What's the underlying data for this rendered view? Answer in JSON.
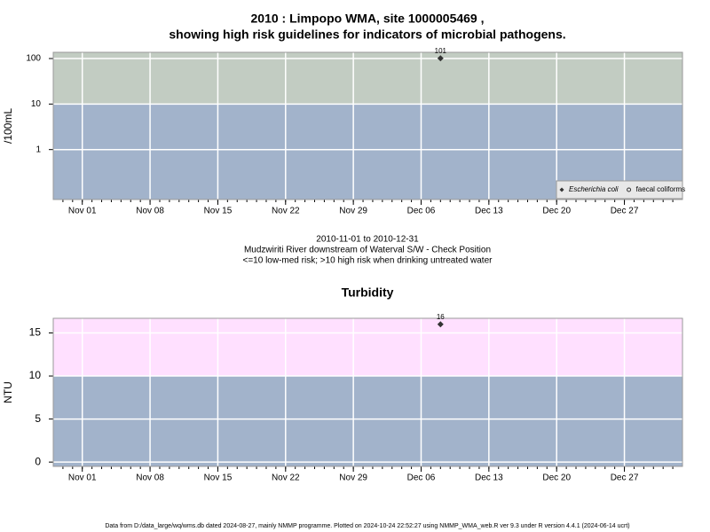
{
  "title_lines": [
    "2010 : Limpopo WMA, site 1000005469 ,",
    "showing high risk guidelines for indicators of microbial pathogens."
  ],
  "footer": "Data from D:/data_large/wq/wms.db dated 2024-08-27, mainly NMMP programme. Plotted on 2024-10-24 22:52:27 using NMMP_WMA_web.R ver 9.3 under R version 4.4.1 (2024-06-14 ucrt)",
  "chart_data": [
    {
      "type": "scatter",
      "ylabel": "/100mL",
      "log_scale": true,
      "grid": true,
      "legend": "bottom-right",
      "xlim": [
        "2010-10-29",
        "2011-01-02"
      ],
      "xticks": [
        {
          "value": "2010-11-01",
          "label": "Nov 01"
        },
        {
          "value": "2010-11-08",
          "label": "Nov 08"
        },
        {
          "value": "2010-11-15",
          "label": "Nov 15"
        },
        {
          "value": "2010-11-22",
          "label": "Nov 22"
        },
        {
          "value": "2010-11-29",
          "label": "Nov 29"
        },
        {
          "value": "2010-12-06",
          "label": "Dec 06"
        },
        {
          "value": "2010-12-13",
          "label": "Dec 13"
        },
        {
          "value": "2010-12-20",
          "label": "Dec 20"
        },
        {
          "value": "2010-12-27",
          "label": "Dec 27"
        }
      ],
      "ylim": [
        0.08,
        137
      ],
      "yticks": [
        1,
        10,
        100
      ],
      "guideline": 10,
      "band_colors": [
        "#a2b3cb",
        "#c2ccc2"
      ],
      "series": [
        {
          "name": "Escherichia coli",
          "marker": "diamond",
          "color": "#333333",
          "x": [
            "2010-12-08"
          ],
          "values": [
            101
          ]
        },
        {
          "name": "faecal coliforms",
          "marker": "circle-open",
          "color": "#333333",
          "x": [],
          "values": []
        }
      ],
      "notes": [
        "2010-11-01 to 2010-12-31",
        "Mudzwiriti River downstream of Waterval S/W - Check Position",
        "<=10 low-med risk; >10 high risk when drinking untreated water"
      ]
    },
    {
      "type": "scatter",
      "title": "Turbidity",
      "ylabel": "NTU",
      "log_scale": false,
      "grid": true,
      "xlim": [
        "2010-10-29",
        "2011-01-02"
      ],
      "xticks": [
        {
          "value": "2010-11-01",
          "label": "Nov 01"
        },
        {
          "value": "2010-11-08",
          "label": "Nov 08"
        },
        {
          "value": "2010-11-15",
          "label": "Nov 15"
        },
        {
          "value": "2010-11-22",
          "label": "Nov 22"
        },
        {
          "value": "2010-11-29",
          "label": "Nov 29"
        },
        {
          "value": "2010-12-06",
          "label": "Dec 06"
        },
        {
          "value": "2010-12-13",
          "label": "Dec 13"
        },
        {
          "value": "2010-12-20",
          "label": "Dec 20"
        },
        {
          "value": "2010-12-27",
          "label": "Dec 27"
        }
      ],
      "ylim": [
        -0.5,
        16.7
      ],
      "yticks": [
        0,
        5,
        10,
        15
      ],
      "guideline": 10,
      "band_colors": [
        "#a2b3cb",
        "#ffe0ff"
      ],
      "series": [
        {
          "name": "Turbidity",
          "marker": "diamond",
          "color": "#333333",
          "x": [
            "2010-12-08"
          ],
          "values": [
            16
          ]
        }
      ]
    }
  ]
}
